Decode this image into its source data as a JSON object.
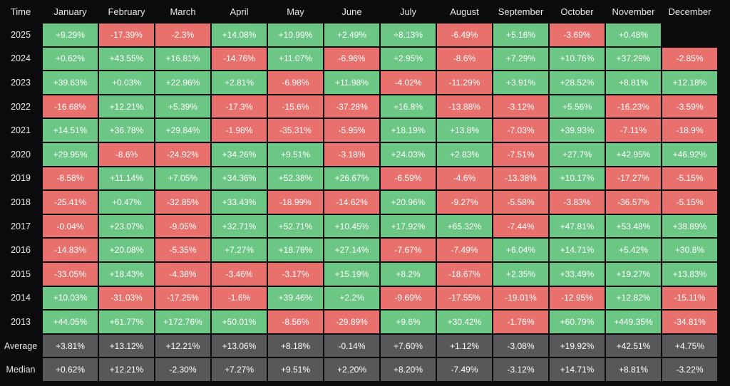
{
  "table": {
    "columns": [
      "Time",
      "January",
      "February",
      "March",
      "April",
      "May",
      "June",
      "July",
      "August",
      "September",
      "October",
      "November",
      "December"
    ],
    "rows": [
      [
        "2025",
        "+9.29%",
        "-17.39%",
        "-2.3%",
        "+14.08%",
        "+10.99%",
        "+2.49%",
        "+8.13%",
        "-6.49%",
        "+5.16%",
        "-3.69%",
        "+0.48%",
        null
      ],
      [
        "2024",
        "+0.62%",
        "+43.55%",
        "+16.81%",
        "-14.76%",
        "+11.07%",
        "-6.96%",
        "+2.95%",
        "-8.6%",
        "+7.29%",
        "+10.76%",
        "+37.29%",
        "-2.85%"
      ],
      [
        "2023",
        "+39.63%",
        "+0.03%",
        "+22.96%",
        "+2.81%",
        "-6.98%",
        "+11.98%",
        "-4.02%",
        "-11.29%",
        "+3.91%",
        "+28.52%",
        "+8.81%",
        "+12.18%"
      ],
      [
        "2022",
        "-16.68%",
        "+12.21%",
        "+5.39%",
        "-17.3%",
        "-15.6%",
        "-37.28%",
        "+16.8%",
        "-13.88%",
        "-3.12%",
        "+5.56%",
        "-16.23%",
        "-3.59%"
      ],
      [
        "2021",
        "+14.51%",
        "+36.78%",
        "+29.84%",
        "-1.98%",
        "-35.31%",
        "-5.95%",
        "+18.19%",
        "+13.8%",
        "-7.03%",
        "+39.93%",
        "-7.11%",
        "-18.9%"
      ],
      [
        "2020",
        "+29.95%",
        "-8.6%",
        "-24.92%",
        "+34.26%",
        "+9.51%",
        "-3.18%",
        "+24.03%",
        "+2.83%",
        "-7.51%",
        "+27.7%",
        "+42.95%",
        "+46.92%"
      ],
      [
        "2019",
        "-8.58%",
        "+11.14%",
        "+7.05%",
        "+34.36%",
        "+52.38%",
        "+26.67%",
        "-6.59%",
        "-4.6%",
        "-13.38%",
        "+10.17%",
        "-17.27%",
        "-5.15%"
      ],
      [
        "2018",
        "-25.41%",
        "+0.47%",
        "-32.85%",
        "+33.43%",
        "-18.99%",
        "-14.62%",
        "+20.96%",
        "-9.27%",
        "-5.58%",
        "-3.83%",
        "-36.57%",
        "-5.15%"
      ],
      [
        "2017",
        "-0.04%",
        "+23.07%",
        "-9.05%",
        "+32.71%",
        "+52.71%",
        "+10.45%",
        "+17.92%",
        "+65.32%",
        "-7.44%",
        "+47.81%",
        "+53.48%",
        "+38.89%"
      ],
      [
        "2016",
        "-14.83%",
        "+20.08%",
        "-5.35%",
        "+7.27%",
        "+18.78%",
        "+27.14%",
        "-7.67%",
        "-7.49%",
        "+6.04%",
        "+14.71%",
        "+5.42%",
        "+30.8%"
      ],
      [
        "2015",
        "-33.05%",
        "+18.43%",
        "-4.38%",
        "-3.46%",
        "-3.17%",
        "+15.19%",
        "+8.2%",
        "-18.67%",
        "+2.35%",
        "+33.49%",
        "+19.27%",
        "+13.83%"
      ],
      [
        "2014",
        "+10.03%",
        "-31.03%",
        "-17.25%",
        "-1.6%",
        "+39.46%",
        "+2.2%",
        "-9.69%",
        "-17.55%",
        "-19.01%",
        "-12.95%",
        "+12.82%",
        "-15.11%"
      ],
      [
        "2013",
        "+44.05%",
        "+61.77%",
        "+172.76%",
        "+50.01%",
        "-8.56%",
        "-29.89%",
        "+9.6%",
        "+30.42%",
        "-1.76%",
        "+60.79%",
        "+449.35%",
        "-34.81%"
      ]
    ],
    "summary_rows": [
      [
        "Average",
        "+3.81%",
        "+13.12%",
        "+12.21%",
        "+13.06%",
        "+8.18%",
        "-0.14%",
        "+7.60%",
        "+1.12%",
        "-3.08%",
        "+19.92%",
        "+42.51%",
        "+4.75%"
      ],
      [
        "Median",
        "+0.62%",
        "+12.21%",
        "-2.30%",
        "+7.27%",
        "+9.51%",
        "+2.20%",
        "+8.20%",
        "-7.49%",
        "-3.12%",
        "+14.71%",
        "+8.81%",
        "-3.22%"
      ]
    ],
    "colors": {
      "positive": "#6cc784",
      "negative": "#e8716d",
      "summary": "#58585b"
    }
  }
}
